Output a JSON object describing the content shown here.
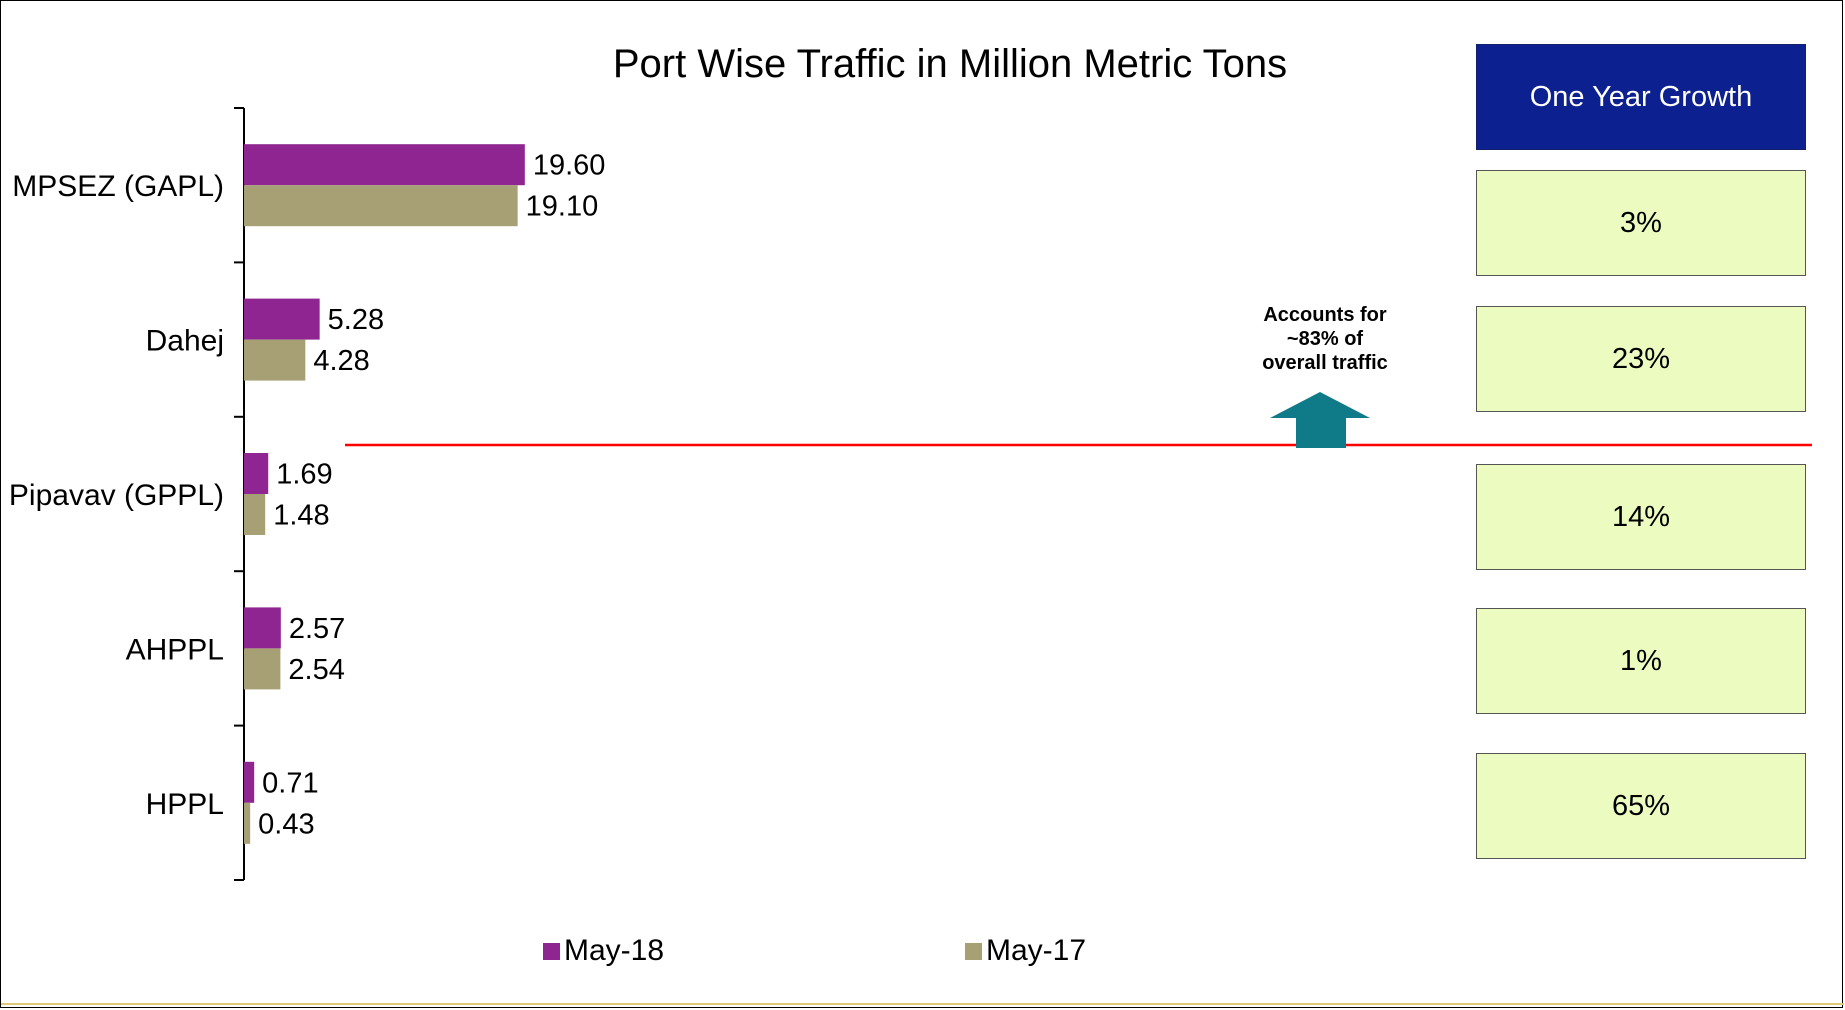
{
  "colors": {
    "may18": "#8e2590",
    "may17": "#a8a075",
    "header_bg": "#0c208f",
    "growth_bg": "#ecfcc0",
    "divider": "#ff0000",
    "arrow": "#0f7b89"
  },
  "chart_data": {
    "type": "bar",
    "orientation": "horizontal",
    "title": "Port Wise Traffic in Million Metric Tons",
    "categories": [
      "MPSEZ (GAPL)",
      "Dahej",
      "Pipavav (GPPL)",
      "AHPPL",
      "HPPL"
    ],
    "series": [
      {
        "name": "May-18",
        "values": [
          19.6,
          5.28,
          1.69,
          2.57,
          0.71
        ],
        "labels": [
          "19.60",
          "5.28",
          "1.69",
          "2.57",
          "0.71"
        ]
      },
      {
        "name": "May-17",
        "values": [
          19.1,
          4.28,
          1.48,
          2.54,
          0.43
        ],
        "labels": [
          "19.10",
          "4.28",
          "1.48",
          "2.54",
          "0.43"
        ]
      }
    ],
    "xlim": [
      0,
      110
    ],
    "grid": false,
    "legend": "bottom",
    "annotation": {
      "text_lines": [
        "Accounts for",
        "~83% of",
        "overall traffic"
      ],
      "icon": "up-arrow-icon"
    }
  },
  "growth_panel": {
    "header": "One Year Growth",
    "values": [
      "3%",
      "23%",
      "14%",
      "1%",
      "65%"
    ]
  }
}
